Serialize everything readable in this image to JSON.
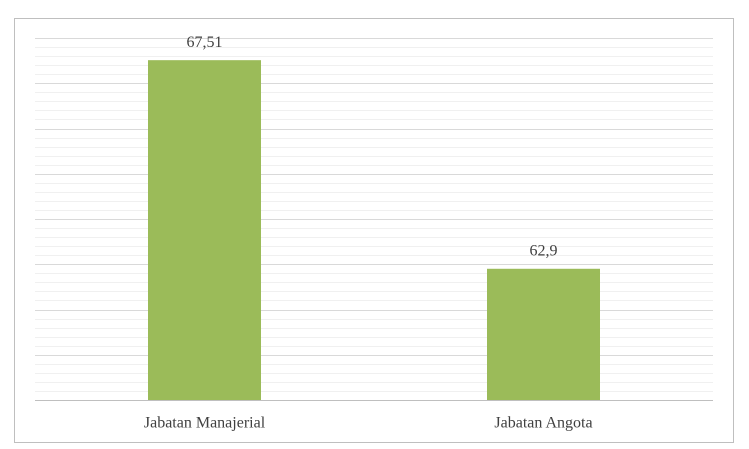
{
  "chart_data": {
    "type": "bar",
    "categories": [
      "Jabatan Manajerial",
      "Jabatan Angota"
    ],
    "values": [
      67.51,
      62.9
    ],
    "value_labels": [
      "67,51",
      "62,9"
    ],
    "color": "#9bbb59",
    "ylim": [
      60,
      68
    ],
    "yticks": [
      60,
      61,
      62,
      63,
      64,
      65,
      66,
      67,
      68
    ],
    "yminorticks": [
      60.2,
      60.4,
      60.6,
      60.8,
      61.2,
      61.4,
      61.6,
      61.8,
      62.2,
      62.4,
      62.6,
      62.8,
      63.2,
      63.4,
      63.6,
      63.8,
      64.2,
      64.4,
      64.6,
      64.8,
      65.2,
      65.4,
      65.6,
      65.8,
      66.2,
      66.4,
      66.6,
      66.8,
      67.2,
      67.4,
      67.6,
      67.8
    ],
    "grid": true
  }
}
